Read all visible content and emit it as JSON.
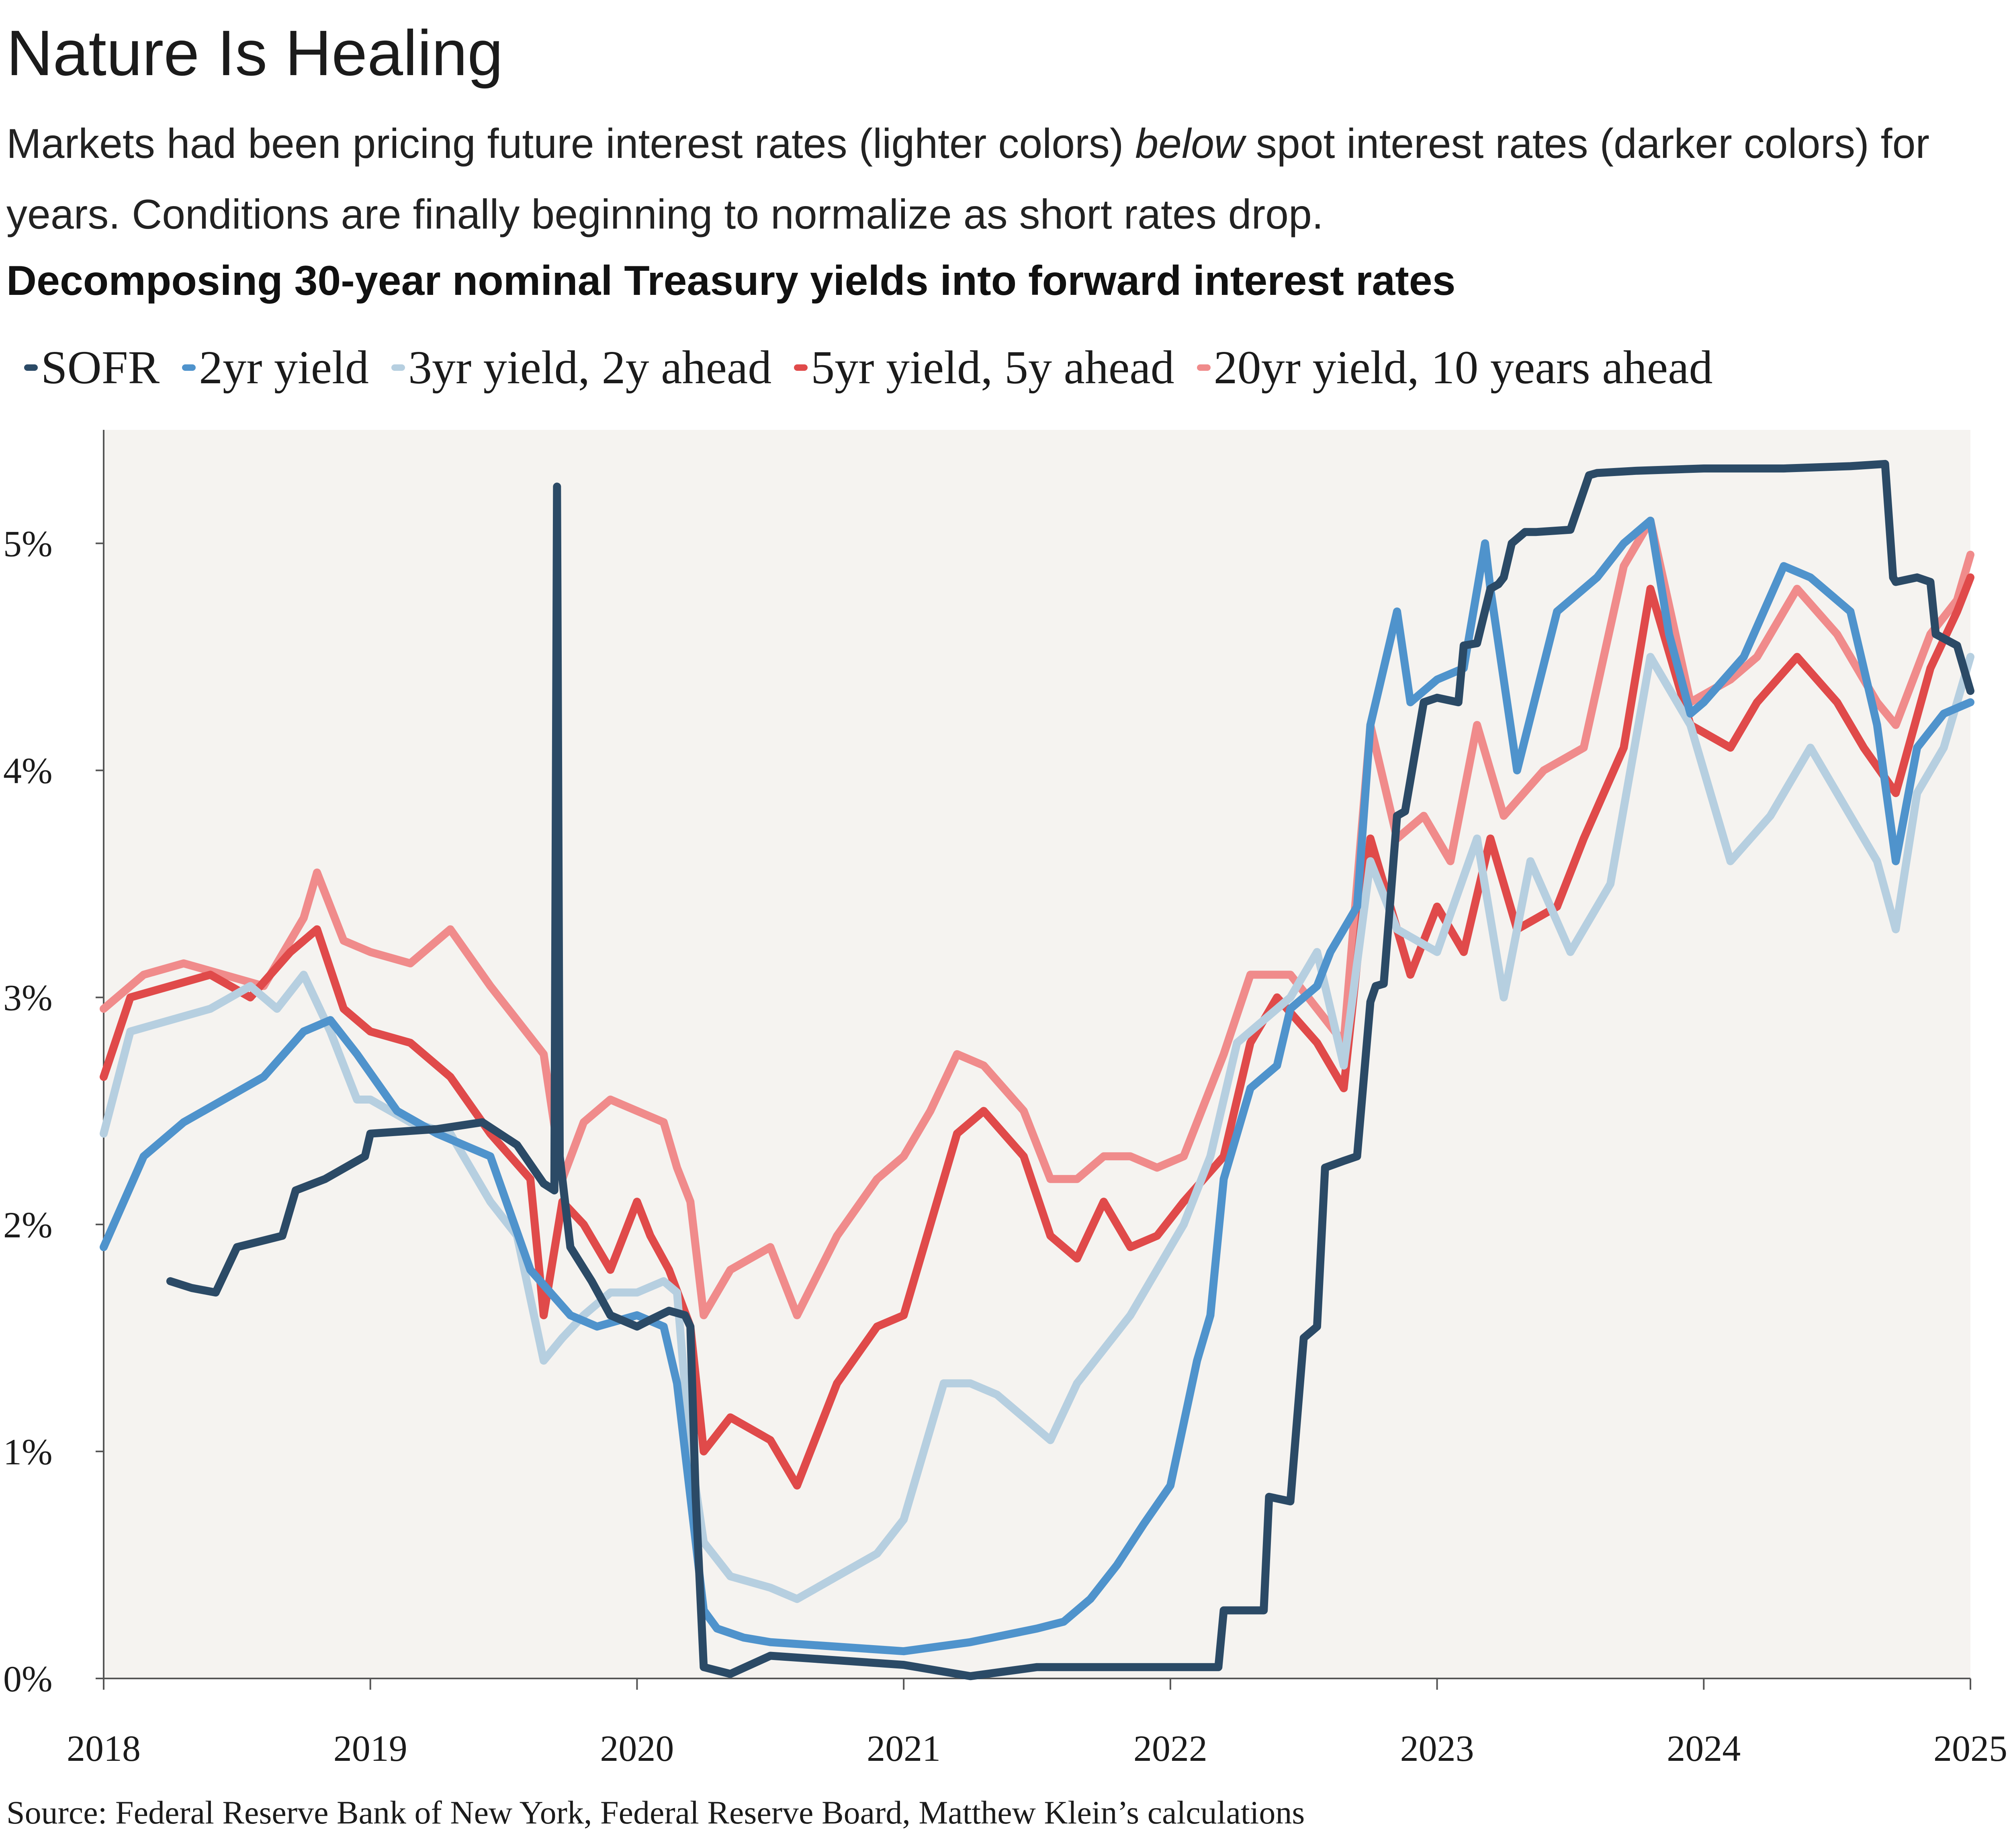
{
  "title": "Nature Is Healing",
  "subtitle": {
    "part1": "Markets had been pricing future interest rates (lighter colors) ",
    "emphasis": "below",
    "part2": " spot interest rates (darker colors) for years. Conditions are finally beginning to normalize as short rates drop."
  },
  "source": "Source: Federal Reserve Bank of New York, Federal Reserve Board, Matthew Klein’s calculations",
  "chart_data": {
    "type": "line",
    "title": "Decomposing 30-year nominal Treasury yields into forward interest rates",
    "xlabel": "",
    "ylabel": "",
    "xlim": [
      2018.0,
      2025.0
    ],
    "ylim": [
      0,
      5.5
    ],
    "x_ticks": [
      2018,
      2019,
      2020,
      2021,
      2022,
      2023,
      2024,
      2025
    ],
    "x_tick_labels": [
      "2018",
      "2019",
      "2020",
      "2021",
      "2022",
      "2023",
      "2024",
      "2025"
    ],
    "y_ticks": [
      0,
      1,
      2,
      3,
      4,
      5
    ],
    "y_tick_labels": [
      "0%",
      "1%",
      "2%",
      "3%",
      "4%",
      "5%"
    ],
    "grid": false,
    "legend_position": "top",
    "series": [
      {
        "name": "SOFR",
        "color": "#2b4a66",
        "x": [
          2018.25,
          2018.33,
          2018.42,
          2018.5,
          2018.67,
          2018.72,
          2018.83,
          2018.98,
          2019.0,
          2019.25,
          2019.42,
          2019.55,
          2019.65,
          2019.69,
          2019.7,
          2019.71,
          2019.75,
          2019.83,
          2019.9,
          2020.0,
          2020.05,
          2020.12,
          2020.18,
          2020.2,
          2020.22,
          2020.25,
          2020.35,
          2020.5,
          2020.75,
          2021.0,
          2021.25,
          2021.5,
          2021.75,
          2022.0,
          2022.18,
          2022.2,
          2022.35,
          2022.37,
          2022.45,
          2022.5,
          2022.55,
          2022.58,
          2022.65,
          2022.7,
          2022.75,
          2022.77,
          2022.8,
          2022.85,
          2022.88,
          2022.95,
          2023.0,
          2023.08,
          2023.1,
          2023.15,
          2023.2,
          2023.23,
          2023.25,
          2023.28,
          2023.33,
          2023.37,
          2023.5,
          2023.57,
          2023.6,
          2023.75,
          2024.0,
          2024.3,
          2024.55,
          2024.68,
          2024.71,
          2024.72,
          2024.8,
          2024.85,
          2024.87,
          2024.95,
          2025.0
        ],
        "values": [
          1.75,
          1.72,
          1.7,
          1.9,
          1.95,
          2.15,
          2.2,
          2.3,
          2.4,
          2.42,
          2.45,
          2.35,
          2.18,
          2.15,
          5.25,
          2.3,
          1.9,
          1.75,
          1.6,
          1.55,
          1.58,
          1.62,
          1.6,
          1.55,
          0.8,
          0.05,
          0.02,
          0.1,
          0.08,
          0.06,
          0.01,
          0.05,
          0.05,
          0.05,
          0.05,
          0.3,
          0.3,
          0.8,
          0.78,
          1.5,
          1.55,
          2.25,
          2.28,
          2.3,
          2.98,
          3.05,
          3.06,
          3.8,
          3.82,
          4.3,
          4.32,
          4.3,
          4.55,
          4.56,
          4.8,
          4.82,
          4.85,
          5.0,
          5.05,
          5.05,
          5.06,
          5.3,
          5.31,
          5.32,
          5.33,
          5.33,
          5.34,
          5.35,
          4.85,
          4.83,
          4.85,
          4.83,
          4.6,
          4.55,
          4.35
        ]
      },
      {
        "name": "2yr yield",
        "color": "#4f93cc",
        "x": [
          2018.0,
          2018.15,
          2018.3,
          2018.45,
          2018.6,
          2018.75,
          2018.85,
          2018.95,
          2019.1,
          2019.25,
          2019.45,
          2019.6,
          2019.75,
          2019.85,
          2020.0,
          2020.1,
          2020.15,
          2020.2,
          2020.25,
          2020.3,
          2020.4,
          2020.5,
          2020.75,
          2021.0,
          2021.25,
          2021.5,
          2021.6,
          2021.7,
          2021.8,
          2021.9,
          2022.0,
          2022.1,
          2022.15,
          2022.2,
          2022.3,
          2022.4,
          2022.45,
          2022.5,
          2022.55,
          2022.6,
          2022.7,
          2022.75,
          2022.8,
          2022.85,
          2022.9,
          2023.0,
          2023.1,
          2023.18,
          2023.2,
          2023.3,
          2023.45,
          2023.6,
          2023.7,
          2023.8,
          2023.87,
          2023.95,
          2024.0,
          2024.15,
          2024.3,
          2024.4,
          2024.55,
          2024.65,
          2024.72,
          2024.8,
          2024.9,
          2025.0
        ],
        "values": [
          1.9,
          2.3,
          2.45,
          2.55,
          2.65,
          2.85,
          2.9,
          2.75,
          2.5,
          2.4,
          2.3,
          1.8,
          1.6,
          1.55,
          1.6,
          1.55,
          1.3,
          0.8,
          0.3,
          0.22,
          0.18,
          0.16,
          0.14,
          0.12,
          0.16,
          0.22,
          0.25,
          0.35,
          0.5,
          0.68,
          0.85,
          1.4,
          1.6,
          2.2,
          2.6,
          2.7,
          2.95,
          3.0,
          3.05,
          3.2,
          3.4,
          4.2,
          4.45,
          4.7,
          4.3,
          4.4,
          4.45,
          5.0,
          4.8,
          4.0,
          4.7,
          4.85,
          5.0,
          5.1,
          4.6,
          4.25,
          4.3,
          4.5,
          4.9,
          4.85,
          4.7,
          4.2,
          3.6,
          4.1,
          4.25,
          4.3
        ]
      },
      {
        "name": "3yr yield, 2y ahead",
        "color": "#b6cfe0",
        "x": [
          2018.0,
          2018.1,
          2018.25,
          2018.4,
          2018.55,
          2018.65,
          2018.75,
          2018.85,
          2018.95,
          2019.0,
          2019.15,
          2019.3,
          2019.45,
          2019.55,
          2019.65,
          2019.72,
          2019.8,
          2019.9,
          2020.0,
          2020.1,
          2020.15,
          2020.2,
          2020.25,
          2020.35,
          2020.5,
          2020.6,
          2020.75,
          2020.9,
          2021.0,
          2021.1,
          2021.15,
          2021.25,
          2021.35,
          2021.45,
          2021.55,
          2021.65,
          2021.75,
          2021.85,
          2021.95,
          2022.05,
          2022.15,
          2022.25,
          2022.35,
          2022.45,
          2022.55,
          2022.65,
          2022.75,
          2022.85,
          2023.0,
          2023.15,
          2023.25,
          2023.35,
          2023.5,
          2023.65,
          2023.8,
          2023.95,
          2024.1,
          2024.25,
          2024.4,
          2024.55,
          2024.65,
          2024.72,
          2024.8,
          2024.9,
          2025.0
        ],
        "values": [
          2.4,
          2.85,
          2.9,
          2.95,
          3.05,
          2.95,
          3.1,
          2.85,
          2.55,
          2.55,
          2.45,
          2.4,
          2.1,
          1.95,
          1.4,
          1.5,
          1.6,
          1.7,
          1.7,
          1.75,
          1.7,
          1.0,
          0.6,
          0.45,
          0.4,
          0.35,
          0.45,
          0.55,
          0.7,
          1.1,
          1.3,
          1.3,
          1.25,
          1.15,
          1.05,
          1.3,
          1.45,
          1.6,
          1.8,
          2.0,
          2.3,
          2.8,
          2.9,
          3.0,
          3.2,
          2.7,
          3.6,
          3.3,
          3.2,
          3.7,
          3.0,
          3.6,
          3.2,
          3.5,
          4.5,
          4.2,
          3.6,
          3.8,
          4.1,
          3.8,
          3.6,
          3.3,
          3.9,
          4.1,
          4.5
        ]
      },
      {
        "name": "5yr yield, 5y ahead",
        "color": "#e04a4a",
        "x": [
          2018.0,
          2018.1,
          2018.25,
          2018.4,
          2018.55,
          2018.7,
          2018.8,
          2018.9,
          2019.0,
          2019.15,
          2019.3,
          2019.45,
          2019.6,
          2019.65,
          2019.72,
          2019.8,
          2019.9,
          2020.0,
          2020.05,
          2020.12,
          2020.2,
          2020.25,
          2020.35,
          2020.5,
          2020.6,
          2020.75,
          2020.9,
          2021.0,
          2021.1,
          2021.2,
          2021.3,
          2021.45,
          2021.55,
          2021.65,
          2021.75,
          2021.85,
          2021.95,
          2022.05,
          2022.2,
          2022.3,
          2022.4,
          2022.55,
          2022.65,
          2022.75,
          2022.85,
          2022.9,
          2023.0,
          2023.1,
          2023.2,
          2023.3,
          2023.45,
          2023.55,
          2023.7,
          2023.8,
          2023.95,
          2024.1,
          2024.2,
          2024.35,
          2024.5,
          2024.6,
          2024.72,
          2024.85,
          2024.95,
          2025.0
        ],
        "values": [
          2.65,
          3.0,
          3.05,
          3.1,
          3.0,
          3.2,
          3.3,
          2.95,
          2.85,
          2.8,
          2.65,
          2.4,
          2.2,
          1.6,
          2.1,
          2.0,
          1.8,
          2.1,
          1.95,
          1.8,
          1.55,
          1.0,
          1.15,
          1.05,
          0.85,
          1.3,
          1.55,
          1.6,
          2.0,
          2.4,
          2.5,
          2.3,
          1.95,
          1.85,
          2.1,
          1.9,
          1.95,
          2.1,
          2.3,
          2.8,
          3.0,
          2.8,
          2.6,
          3.7,
          3.3,
          3.1,
          3.4,
          3.2,
          3.7,
          3.3,
          3.4,
          3.7,
          4.1,
          4.8,
          4.2,
          4.1,
          4.3,
          4.5,
          4.3,
          4.1,
          3.9,
          4.45,
          4.7,
          4.85
        ]
      },
      {
        "name": "20yr yield, 10 years ahead",
        "color": "#f08b8b",
        "x": [
          2018.0,
          2018.15,
          2018.3,
          2018.45,
          2018.6,
          2018.75,
          2018.8,
          2018.9,
          2019.0,
          2019.15,
          2019.3,
          2019.45,
          2019.55,
          2019.65,
          2019.72,
          2019.8,
          2019.9,
          2020.0,
          2020.1,
          2020.15,
          2020.2,
          2020.25,
          2020.35,
          2020.5,
          2020.6,
          2020.75,
          2020.9,
          2021.0,
          2021.1,
          2021.2,
          2021.3,
          2021.45,
          2021.55,
          2021.65,
          2021.75,
          2021.85,
          2021.95,
          2022.05,
          2022.2,
          2022.3,
          2022.45,
          2022.55,
          2022.65,
          2022.75,
          2022.85,
          2022.95,
          2023.05,
          2023.15,
          2023.25,
          2023.4,
          2023.55,
          2023.7,
          2023.8,
          2023.95,
          2024.1,
          2024.2,
          2024.35,
          2024.5,
          2024.65,
          2024.72,
          2024.85,
          2024.95,
          2025.0
        ],
        "values": [
          2.95,
          3.1,
          3.15,
          3.1,
          3.05,
          3.35,
          3.55,
          3.25,
          3.2,
          3.15,
          3.3,
          3.05,
          2.9,
          2.75,
          2.2,
          2.45,
          2.55,
          2.5,
          2.45,
          2.25,
          2.1,
          1.6,
          1.8,
          1.9,
          1.6,
          1.95,
          2.2,
          2.3,
          2.5,
          2.75,
          2.7,
          2.5,
          2.2,
          2.2,
          2.3,
          2.3,
          2.25,
          2.3,
          2.75,
          3.1,
          3.1,
          2.95,
          2.8,
          4.2,
          3.7,
          3.8,
          3.6,
          4.2,
          3.8,
          4.0,
          4.1,
          4.9,
          5.1,
          4.3,
          4.4,
          4.5,
          4.8,
          4.6,
          4.3,
          4.2,
          4.6,
          4.75,
          4.95
        ]
      }
    ]
  }
}
